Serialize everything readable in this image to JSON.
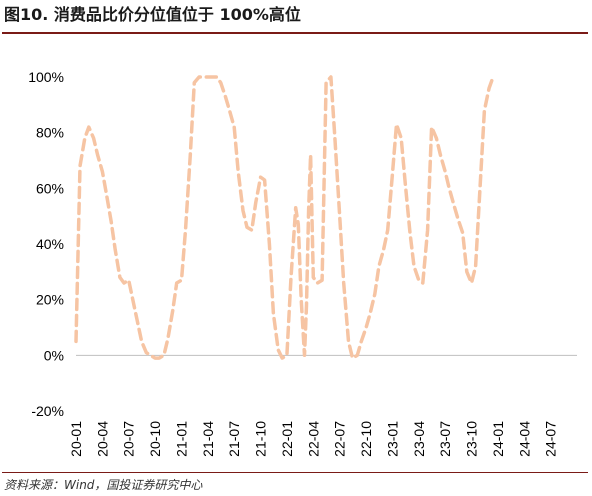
{
  "title": "图10. 消费品比价分位值位于 100%高位",
  "source": "资料来源：Wind，国投证券研究中心",
  "colors": {
    "series": "#f6c4a3",
    "title_rule": "#7a1b17",
    "axis": "#bfbfbf"
  },
  "chart_data": {
    "type": "line",
    "title": "",
    "xlabel": "",
    "ylabel": "",
    "line_style": "dashed",
    "grid": false,
    "legend": "none",
    "ylim": [
      -20,
      100
    ],
    "y_ticks": [
      "-20%",
      "0%",
      "20%",
      "40%",
      "60%",
      "80%",
      "100%"
    ],
    "x_tick_labels": [
      "20-01",
      "20-04",
      "20-07",
      "20-10",
      "21-01",
      "21-04",
      "21-07",
      "21-10",
      "22-01",
      "22-04",
      "22-07",
      "22-10",
      "23-01",
      "23-04",
      "23-07",
      "23-10",
      "24-01",
      "24-04",
      "24-07"
    ],
    "x_start": "2020-01",
    "x_end": "2024-10",
    "series": [
      {
        "name": "",
        "points": [
          [
            "2020-01-01",
            5
          ],
          [
            "2020-01-15",
            68
          ],
          [
            "2020-02-01",
            78
          ],
          [
            "2020-02-15",
            82
          ],
          [
            "2020-03-01",
            78
          ],
          [
            "2020-03-15",
            72
          ],
          [
            "2020-04-01",
            66
          ],
          [
            "2020-04-15",
            58
          ],
          [
            "2020-05-01",
            48
          ],
          [
            "2020-05-15",
            38
          ],
          [
            "2020-06-01",
            28
          ],
          [
            "2020-06-15",
            26
          ],
          [
            "2020-07-01",
            27
          ],
          [
            "2020-07-15",
            20
          ],
          [
            "2020-08-01",
            12
          ],
          [
            "2020-08-15",
            5
          ],
          [
            "2020-09-01",
            1
          ],
          [
            "2020-09-15",
            0
          ],
          [
            "2020-10-01",
            -1
          ],
          [
            "2020-10-15",
            -1
          ],
          [
            "2020-11-01",
            0
          ],
          [
            "2020-11-15",
            6
          ],
          [
            "2020-12-01",
            16
          ],
          [
            "2020-12-15",
            26
          ],
          [
            "2021-01-01",
            27
          ],
          [
            "2021-01-15",
            45
          ],
          [
            "2021-02-01",
            72
          ],
          [
            "2021-02-15",
            98
          ],
          [
            "2021-03-01",
            100
          ],
          [
            "2021-03-15",
            100
          ],
          [
            "2021-04-01",
            100
          ],
          [
            "2021-04-15",
            100
          ],
          [
            "2021-05-01",
            100
          ],
          [
            "2021-05-15",
            98
          ],
          [
            "2021-06-01",
            93
          ],
          [
            "2021-06-15",
            88
          ],
          [
            "2021-07-01",
            82
          ],
          [
            "2021-07-15",
            66
          ],
          [
            "2021-08-01",
            52
          ],
          [
            "2021-08-15",
            46
          ],
          [
            "2021-09-01",
            45
          ],
          [
            "2021-09-15",
            55
          ],
          [
            "2021-10-01",
            64
          ],
          [
            "2021-10-15",
            63
          ],
          [
            "2021-11-01",
            40
          ],
          [
            "2021-11-15",
            15
          ],
          [
            "2021-12-01",
            2
          ],
          [
            "2021-12-15",
            -1
          ],
          [
            "2022-01-01",
            0
          ],
          [
            "2022-01-15",
            28
          ],
          [
            "2022-02-01",
            53
          ],
          [
            "2022-02-10",
            47
          ],
          [
            "2022-02-20",
            20
          ],
          [
            "2022-03-01",
            0
          ],
          [
            "2022-03-08",
            18
          ],
          [
            "2022-03-15",
            52
          ],
          [
            "2022-03-22",
            72
          ],
          [
            "2022-04-01",
            28
          ],
          [
            "2022-04-15",
            26
          ],
          [
            "2022-05-01",
            27
          ],
          [
            "2022-05-15",
            98
          ],
          [
            "2022-06-01",
            100
          ],
          [
            "2022-06-15",
            78
          ],
          [
            "2022-07-01",
            50
          ],
          [
            "2022-07-15",
            26
          ],
          [
            "2022-08-01",
            5
          ],
          [
            "2022-08-15",
            -1
          ],
          [
            "2022-09-01",
            0
          ],
          [
            "2022-09-15",
            5
          ],
          [
            "2022-10-01",
            10
          ],
          [
            "2022-10-15",
            15
          ],
          [
            "2022-11-01",
            22
          ],
          [
            "2022-11-15",
            32
          ],
          [
            "2022-12-01",
            38
          ],
          [
            "2022-12-15",
            45
          ],
          [
            "2023-01-01",
            65
          ],
          [
            "2023-01-15",
            83
          ],
          [
            "2023-02-01",
            78
          ],
          [
            "2023-02-15",
            62
          ],
          [
            "2023-03-01",
            44
          ],
          [
            "2023-03-15",
            32
          ],
          [
            "2023-04-01",
            27
          ],
          [
            "2023-04-15",
            26
          ],
          [
            "2023-05-01",
            45
          ],
          [
            "2023-05-15",
            82
          ],
          [
            "2023-06-01",
            78
          ],
          [
            "2023-06-15",
            72
          ],
          [
            "2023-07-01",
            66
          ],
          [
            "2023-07-15",
            60
          ],
          [
            "2023-08-01",
            54
          ],
          [
            "2023-08-15",
            49
          ],
          [
            "2023-09-01",
            44
          ],
          [
            "2023-09-15",
            30
          ],
          [
            "2023-10-01",
            26
          ],
          [
            "2023-10-15",
            32
          ],
          [
            "2023-11-01",
            62
          ],
          [
            "2023-11-15",
            88
          ],
          [
            "2023-12-01",
            96
          ],
          [
            "2023-12-15",
            100
          ]
        ]
      }
    ]
  }
}
